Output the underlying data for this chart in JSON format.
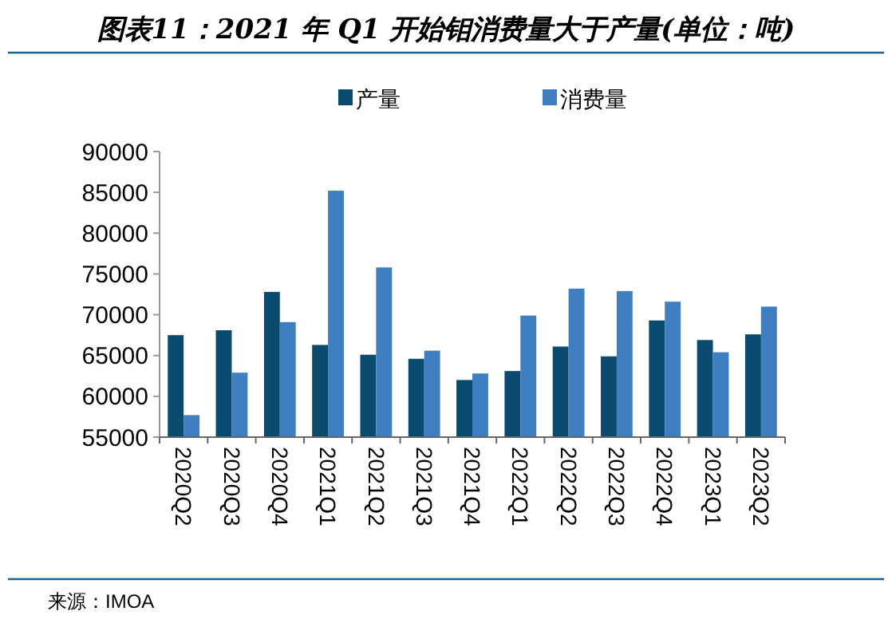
{
  "chart_data": {
    "type": "bar",
    "title": "图表11：2021 年 Q1 开始钼消费量大于产量(单位：吨)",
    "annotations": [
      "来源：IMOA"
    ],
    "categories": [
      "2020Q2",
      "2020Q3",
      "2020Q4",
      "2021Q1",
      "2021Q2",
      "2021Q3",
      "2021Q4",
      "2022Q1",
      "2022Q2",
      "2022Q3",
      "2022Q4",
      "2023Q1",
      "2023Q2"
    ],
    "series": [
      {
        "name": "产量",
        "color": "#0b4a6f",
        "values": [
          67500,
          68100,
          72800,
          66300,
          65100,
          64600,
          62000,
          63100,
          66100,
          64900,
          69300,
          66900,
          67600
        ]
      },
      {
        "name": "消费量",
        "color": "#3f7fc1",
        "values": [
          57700,
          62900,
          69100,
          85200,
          75800,
          65600,
          62800,
          69900,
          73200,
          72900,
          71600,
          65400,
          71000
        ]
      }
    ],
    "ylim": [
      55000,
      90000
    ],
    "yticks": [
      55000,
      60000,
      65000,
      70000,
      75000,
      80000,
      85000,
      90000
    ],
    "legend": "top",
    "grid": false
  }
}
